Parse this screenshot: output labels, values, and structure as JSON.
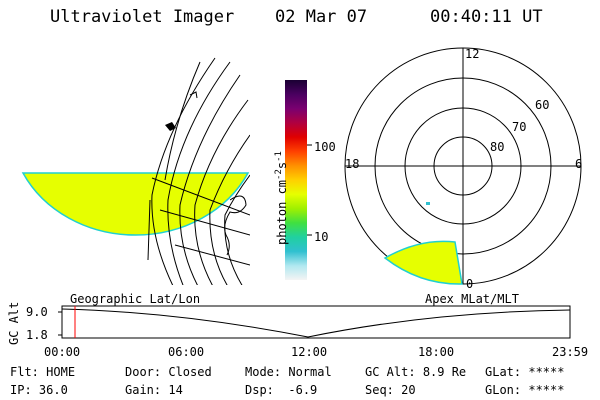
{
  "header": {
    "instrument": "Ultraviolet Imager",
    "date": "02 Mar 07",
    "time": "00:40:11 UT"
  },
  "geo_map": {
    "label": "Geographic Lat/Lon",
    "fill_color": "#e6ff00"
  },
  "colorbar": {
    "label": "photon cm-2s-1",
    "label_main": "photon cm",
    "label_exp1": "-2",
    "label_s": "s",
    "label_exp2": "-1",
    "ticks": [
      "100",
      "10"
    ],
    "colors": [
      "#1a0033",
      "#4a0060",
      "#7a0070",
      "#b00040",
      "#e00000",
      "#ff4000",
      "#ff9000",
      "#ffd000",
      "#e6ff00",
      "#a0f000",
      "#40e040",
      "#20d0a0",
      "#30c0d0",
      "#b0e8f0",
      "#f4f4f4"
    ]
  },
  "polar": {
    "label": "Apex MLat/MLT",
    "mlt_labels": {
      "top": "12",
      "left": "18",
      "right": "6",
      "bottom": "0"
    },
    "lat_labels": [
      "60",
      "70",
      "80"
    ],
    "fill_color": "#e6ff00"
  },
  "timeline": {
    "axis_label": "GC Alt",
    "y_ticks": [
      "9.0",
      "1.8"
    ],
    "x_ticks": [
      "00:00",
      "06:00",
      "12:00",
      "18:00",
      "23:59"
    ],
    "marker_color": "#ff0000",
    "marker_time": "00:40"
  },
  "status": {
    "row1": [
      {
        "key": "Flt:",
        "value": "HOME"
      },
      {
        "key": "Door:",
        "value": "Closed"
      },
      {
        "key": "Mode:",
        "value": "Normal"
      },
      {
        "key": "GC Alt:",
        "value": "8.9 Re"
      },
      {
        "key": "GLat:",
        "value": "*****"
      }
    ],
    "row2": [
      {
        "key": "IP:",
        "value": "36.0"
      },
      {
        "key": "Gain:",
        "value": "14"
      },
      {
        "key": "Dsp:",
        "value": " -6.9"
      },
      {
        "key": "Seq:",
        "value": "20"
      },
      {
        "key": "GLon:",
        "value": "*****"
      }
    ]
  }
}
